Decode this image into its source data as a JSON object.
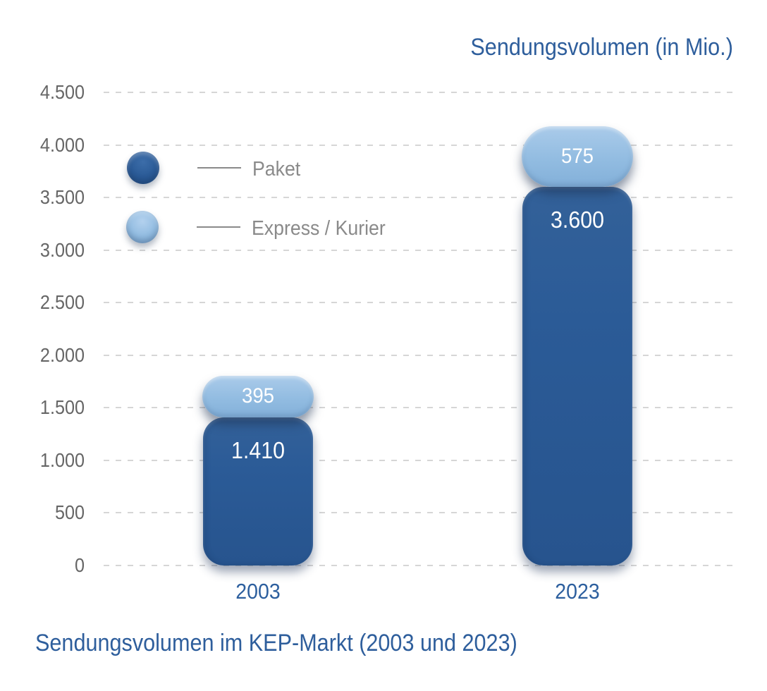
{
  "header": {
    "title": "Sendungsvolumen (in Mio.)"
  },
  "footer": {
    "caption": "Sendungsvolumen im KEP-Markt (2003 und 2023)"
  },
  "legend": {
    "items": [
      {
        "label": "Paket",
        "color": "#2a5a96"
      },
      {
        "label": "Express / Kurier",
        "color": "#92bce1"
      }
    ]
  },
  "colors": {
    "paket_bar": "#2a5a96",
    "express_bar": "#92bce1",
    "title_text": "#2e5e9c",
    "axis_text": "#666666",
    "legend_text": "#8a8a8a",
    "gridline": "#d6d6d6",
    "value_text": "#ffffff"
  },
  "chart_data": {
    "type": "bar",
    "stacked": true,
    "categories": [
      "2003",
      "2023"
    ],
    "series": [
      {
        "name": "Paket",
        "color": "#2a5a96",
        "values": [
          1410,
          3600
        ],
        "labels": [
          "1.410",
          "3.600"
        ]
      },
      {
        "name": "Express / Kurier",
        "color": "#92bce1",
        "values": [
          395,
          575
        ],
        "labels": [
          "395",
          "575"
        ]
      }
    ],
    "title": "Sendungsvolumen (in Mio.)",
    "caption": "Sendungsvolumen im KEP-Markt (2003 und 2023)",
    "ylabel": "",
    "xlabel": "",
    "ylim": [
      0,
      4500
    ],
    "ytick_step": 500,
    "yticks": [
      "0",
      "500",
      "1.000",
      "1.500",
      "2.000",
      "2.500",
      "3.000",
      "3.500",
      "4.000",
      "4.500"
    ],
    "grid": "horizontal-dashed",
    "legend_position": "upper-left-inside"
  }
}
